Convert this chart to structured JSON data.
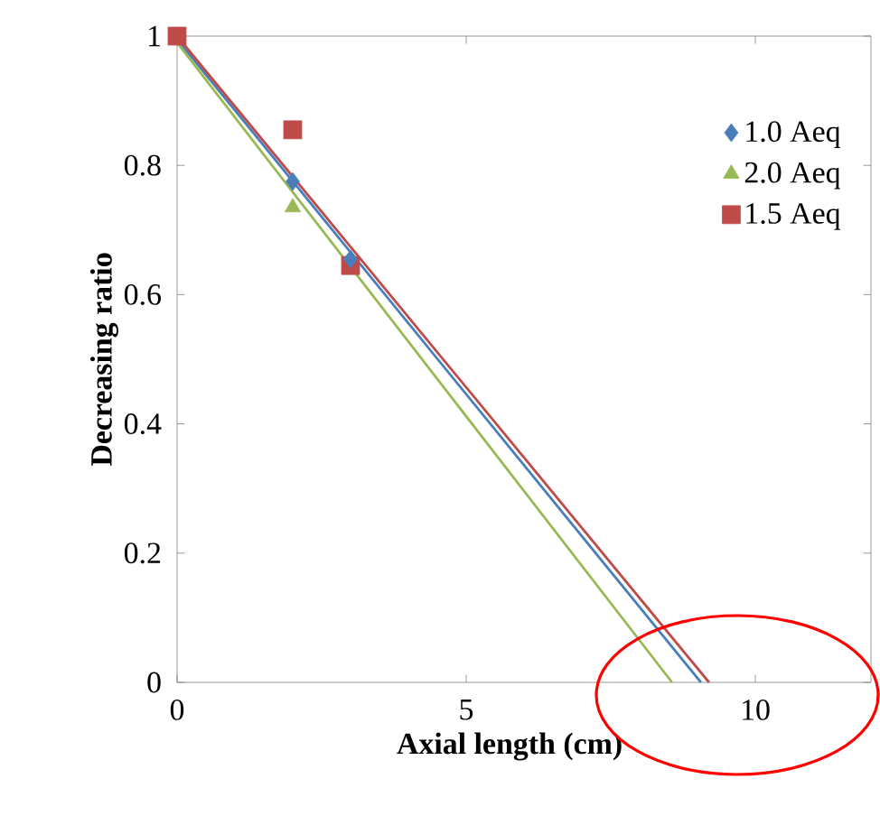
{
  "chart_data": {
    "type": "scatter",
    "xlabel": "Axial length (cm)",
    "ylabel": "Decreasing ratio",
    "xlim": [
      0,
      12
    ],
    "ylim": [
      0,
      1
    ],
    "xticks": [
      0,
      5,
      10
    ],
    "yticks": [
      0,
      0.2,
      0.4,
      0.6,
      0.8,
      1
    ],
    "grid": false,
    "legend": "top right",
    "series": [
      {
        "name": "1.0 Aeq",
        "color": "#4a7ebb",
        "marker": "diamond",
        "x": [
          2,
          3
        ],
        "values": [
          0.775,
          0.655
        ]
      },
      {
        "name": "2.0 Aeq",
        "color": "#98b954",
        "marker": "triangle",
        "x": [
          2
        ],
        "values": [
          0.735
        ]
      },
      {
        "name": "1.5 Aeq",
        "color": "#be4b48",
        "marker": "square",
        "x": [
          0,
          2,
          3
        ],
        "values": [
          1,
          0.855,
          0.645
        ]
      },
      {
        "type": "line",
        "color": "#4a7ebb",
        "line_style": "solid",
        "marker": "none",
        "x": [
          0,
          9.06
        ],
        "values": [
          0.995,
          0
        ]
      },
      {
        "type": "line",
        "color": "#98b954",
        "line_style": "solid",
        "marker": "none",
        "x": [
          0,
          8.56
        ],
        "values": [
          0.99,
          0
        ]
      },
      {
        "type": "line",
        "color": "#be4b48",
        "line_style": "solid",
        "marker": "none",
        "x": [
          0,
          9.2
        ],
        "values": [
          1,
          0
        ]
      }
    ]
  }
}
